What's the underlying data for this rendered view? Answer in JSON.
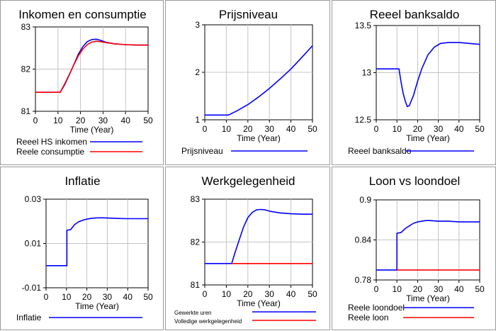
{
  "chart_data": [
    {
      "type": "line",
      "title": "Inkomen en consumptie",
      "xlabel": "Time (Year)",
      "xlim": [
        0,
        50
      ],
      "xticks": [
        "0",
        "10",
        "20",
        "30",
        "40",
        "50"
      ],
      "ylim": [
        81,
        83
      ],
      "yticks": [
        "83",
        "82",
        "81"
      ],
      "grid": true,
      "legend_position": "bottom",
      "series": [
        {
          "name": "Reeel HS inkomen",
          "color": "#0000ff",
          "x": [
            0,
            10,
            11,
            13,
            15,
            17,
            19,
            21,
            23,
            25,
            27,
            29,
            31,
            35,
            40,
            45,
            50
          ],
          "y": [
            81.45,
            81.45,
            81.45,
            81.63,
            81.86,
            82.1,
            82.35,
            82.53,
            82.65,
            82.7,
            82.71,
            82.68,
            82.64,
            82.6,
            82.58,
            82.57,
            82.57
          ]
        },
        {
          "name": "Reele consumptie",
          "color": "#ff0000",
          "x": [
            0,
            10,
            11,
            13,
            15,
            17,
            19,
            21,
            23,
            25,
            27,
            29,
            31,
            35,
            40,
            45,
            50
          ],
          "y": [
            81.45,
            81.45,
            81.45,
            81.65,
            81.87,
            82.1,
            82.31,
            82.47,
            82.58,
            82.64,
            82.66,
            82.65,
            82.63,
            82.6,
            82.58,
            82.57,
            82.57
          ]
        }
      ]
    },
    {
      "type": "line",
      "title": "Prijsniveau",
      "xlabel": "Time (Year)",
      "xlim": [
        0,
        50
      ],
      "xticks": [
        "0",
        "10",
        "20",
        "30",
        "40",
        "50"
      ],
      "ylim": [
        1,
        3
      ],
      "yticks": [
        "3",
        "2",
        "1"
      ],
      "grid": true,
      "legend_position": "bottom",
      "series": [
        {
          "name": "Prijsniveau",
          "color": "#0000ff",
          "x": [
            0,
            11,
            15,
            20,
            25,
            30,
            35,
            40,
            45,
            50
          ],
          "y": [
            1.1,
            1.1,
            1.19,
            1.32,
            1.48,
            1.66,
            1.86,
            2.07,
            2.31,
            2.56
          ]
        }
      ]
    },
    {
      "type": "line",
      "title": "Reeel banksaldo",
      "xlabel": "Time (Year)",
      "xlim": [
        0,
        50
      ],
      "xticks": [
        "0",
        "10",
        "20",
        "30",
        "40",
        "50"
      ],
      "ylim": [
        12.5,
        13.5
      ],
      "yticks": [
        "13.5",
        "13",
        "12.5"
      ],
      "grid": true,
      "legend_position": "bottom",
      "series": [
        {
          "name": "Reeel banksaldo",
          "color": "#0000ff",
          "x": [
            0,
            11,
            12,
            13,
            14,
            15,
            16,
            18,
            20,
            22,
            25,
            28,
            31,
            35,
            40,
            45,
            50
          ],
          "y": [
            13.04,
            13.04,
            12.9,
            12.78,
            12.7,
            12.64,
            12.65,
            12.76,
            12.91,
            13.04,
            13.19,
            13.27,
            13.31,
            13.32,
            13.32,
            13.31,
            13.3
          ]
        }
      ]
    },
    {
      "type": "line",
      "title": "Inflatie",
      "xlabel": "Time (Year)",
      "xlim": [
        0,
        50
      ],
      "xticks": [
        "0",
        "10",
        "20",
        "30",
        "40",
        "50"
      ],
      "ylim": [
        -0.01,
        0.03
      ],
      "yticks": [
        "0.03",
        "0.01",
        "-0.01"
      ],
      "grid": true,
      "legend_position": "bottom",
      "series": [
        {
          "name": "Inflatie",
          "color": "#0000ff",
          "x": [
            0,
            10.2,
            10.2,
            12,
            14,
            16,
            18,
            20,
            22,
            24,
            26,
            28,
            30,
            35,
            40,
            45,
            50
          ],
          "y": [
            0.0,
            0.0,
            0.016,
            0.0162,
            0.0185,
            0.0198,
            0.0205,
            0.021,
            0.0213,
            0.0215,
            0.0216,
            0.0216,
            0.0215,
            0.0213,
            0.0212,
            0.0212,
            0.0212
          ]
        }
      ]
    },
    {
      "type": "line",
      "title": "Werkgelegenheid",
      "xlabel": "Time (Year)",
      "xlim": [
        0,
        50
      ],
      "xticks": [
        "0",
        "10",
        "20",
        "30",
        "40",
        "50"
      ],
      "ylim": [
        81,
        83
      ],
      "yticks": [
        "83",
        "82",
        "81"
      ],
      "grid": true,
      "legend_position": "bottom",
      "series": [
        {
          "name": "Gewerkte uren",
          "color": "#0000ff",
          "x": [
            0,
            12.5,
            14,
            16,
            18,
            20,
            22,
            24,
            26,
            28,
            30,
            35,
            40,
            45,
            50
          ],
          "y": [
            81.5,
            81.5,
            81.75,
            82.05,
            82.35,
            82.57,
            82.69,
            82.75,
            82.76,
            82.75,
            82.72,
            82.68,
            82.66,
            82.65,
            82.65
          ]
        },
        {
          "name": "Volledige werkgelegenheid",
          "color": "#ff0000",
          "x": [
            12.5,
            50
          ],
          "y": [
            81.5,
            81.5
          ]
        }
      ]
    },
    {
      "type": "line",
      "title": "Loon vs loondoel",
      "xlabel": "Time (Year)",
      "xlim": [
        0,
        50
      ],
      "xticks": [
        "0",
        "10",
        "20",
        "30",
        "40",
        "50"
      ],
      "ylim": [
        0.78,
        0.9
      ],
      "yticks": [
        "0.9",
        "0.84",
        "0.78"
      ],
      "grid": true,
      "legend_position": "bottom",
      "series": [
        {
          "name": "Reele loondoel",
          "color": "#0000ff",
          "x": [
            0,
            10,
            10,
            12,
            14,
            16,
            18,
            20,
            22,
            24,
            26,
            30,
            35,
            40,
            45,
            50
          ],
          "y": [
            0.795,
            0.795,
            0.85,
            0.851,
            0.857,
            0.861,
            0.865,
            0.867,
            0.868,
            0.869,
            0.869,
            0.868,
            0.868,
            0.867,
            0.867,
            0.867
          ]
        },
        {
          "name": "Reele loon",
          "color": "#ff0000",
          "x": [
            10,
            50
          ],
          "y": [
            0.795,
            0.795
          ]
        }
      ]
    }
  ]
}
